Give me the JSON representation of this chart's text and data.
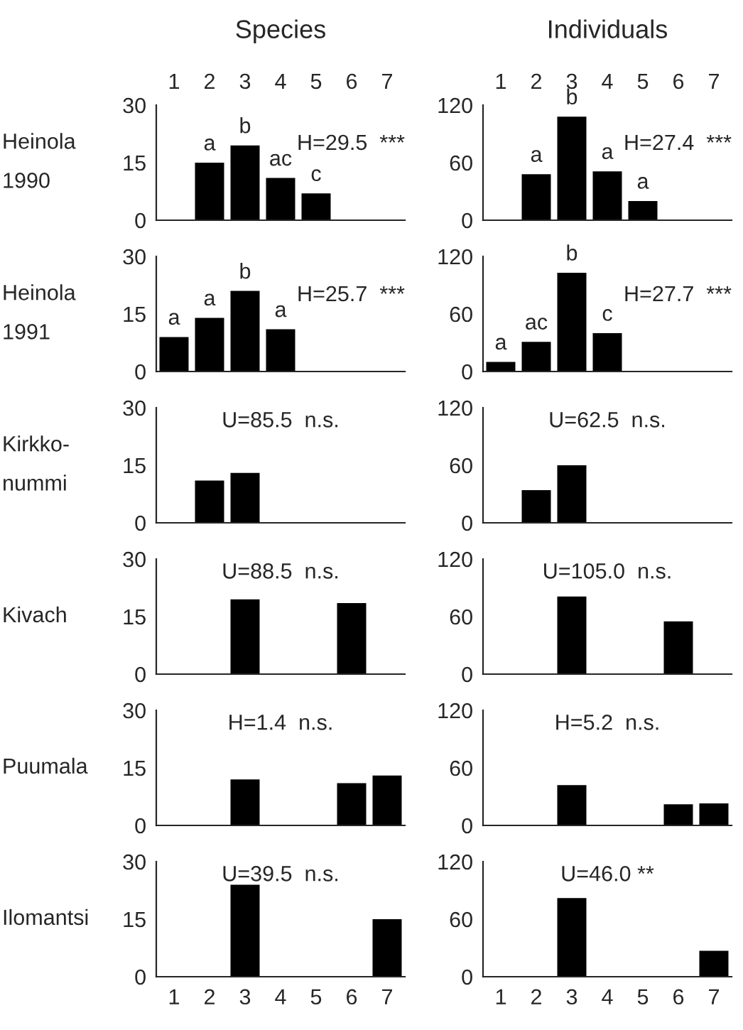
{
  "chart_data": [
    {
      "type": "bar",
      "title": "Species",
      "ylabel": "Heinola\n1990",
      "categories": [
        "1",
        "2",
        "3",
        "4",
        "5",
        "6",
        "7"
      ],
      "values": [
        0,
        15,
        19.5,
        11,
        7,
        0,
        0
      ],
      "color": "#000000",
      "ylim": [
        0,
        30
      ],
      "yticks": [
        0,
        15,
        30
      ],
      "grid": false,
      "annotations": [
        {
          "text": "a",
          "x": "2",
          "y": 15
        },
        {
          "text": "b",
          "x": "3",
          "y": 19.5
        },
        {
          "text": "ac",
          "x": "4",
          "y": 11
        },
        {
          "text": "c",
          "x": "5",
          "y": 7
        },
        "H=29.5  ***"
      ]
    },
    {
      "type": "bar",
      "title": "Individuals",
      "categories": [
        "1",
        "2",
        "3",
        "4",
        "5",
        "6",
        "7"
      ],
      "values": [
        0,
        48,
        108,
        51,
        20,
        0,
        0
      ],
      "color": "#000000",
      "ylim": [
        0,
        120
      ],
      "yticks": [
        0,
        60,
        120
      ],
      "grid": false,
      "annotations": [
        {
          "text": "a",
          "x": "2",
          "y": 48
        },
        {
          "text": "b",
          "x": "3",
          "y": 108
        },
        {
          "text": "a",
          "x": "4",
          "y": 51
        },
        {
          "text": "a",
          "x": "5",
          "y": 20
        },
        "H=27.4  ***"
      ]
    },
    {
      "type": "bar",
      "ylabel": "Heinola\n1991",
      "categories": [
        "1",
        "2",
        "3",
        "4",
        "5",
        "6",
        "7"
      ],
      "values": [
        9,
        14,
        21,
        11,
        0,
        0,
        0
      ],
      "color": "#000000",
      "ylim": [
        0,
        30
      ],
      "yticks": [
        0,
        15,
        30
      ],
      "grid": false,
      "tick_labels": "y",
      "annotations": [
        {
          "text": "a",
          "x": "1",
          "y": 9
        },
        {
          "text": "a",
          "x": "2",
          "y": 14
        },
        {
          "text": "b",
          "x": "3",
          "y": 21
        },
        {
          "text": "a",
          "x": "4",
          "y": 11
        },
        "H=25.7  ***"
      ]
    },
    {
      "type": "bar",
      "categories": [
        "1",
        "2",
        "3",
        "4",
        "5",
        "6",
        "7"
      ],
      "values": [
        10,
        31,
        103,
        40,
        0,
        0,
        0
      ],
      "color": "#000000",
      "ylim": [
        0,
        120
      ],
      "yticks": [
        0,
        60,
        120
      ],
      "grid": false,
      "tick_labels": "y",
      "annotations": [
        {
          "text": "a",
          "x": "1",
          "y": 10
        },
        {
          "text": "ac",
          "x": "2",
          "y": 31
        },
        {
          "text": "b",
          "x": "3",
          "y": 103
        },
        {
          "text": "c",
          "x": "4",
          "y": 40
        },
        "H=27.7  ***"
      ]
    },
    {
      "type": "bar",
      "ylabel": "Kirkko-\nnummi",
      "categories": [
        "1",
        "2",
        "3",
        "4",
        "5",
        "6",
        "7"
      ],
      "values": [
        0,
        11,
        13,
        0,
        0,
        0,
        0
      ],
      "color": "#000000",
      "ylim": [
        0,
        30
      ],
      "yticks": [
        0,
        15,
        30
      ],
      "grid": false,
      "tick_labels": "y",
      "annotations": [
        "U=85.5  n.s."
      ]
    },
    {
      "type": "bar",
      "categories": [
        "1",
        "2",
        "3",
        "4",
        "5",
        "6",
        "7"
      ],
      "values": [
        0,
        34,
        60,
        0,
        0,
        0,
        0
      ],
      "color": "#000000",
      "ylim": [
        0,
        120
      ],
      "yticks": [
        0,
        60,
        120
      ],
      "grid": false,
      "tick_labels": "y",
      "annotations": [
        "U=62.5  n.s."
      ]
    },
    {
      "type": "bar",
      "ylabel": "Kivach",
      "categories": [
        "1",
        "2",
        "3",
        "4",
        "5",
        "6",
        "7"
      ],
      "values": [
        0,
        0,
        19.5,
        0,
        0,
        18.5,
        0
      ],
      "color": "#000000",
      "ylim": [
        0,
        30
      ],
      "yticks": [
        0,
        15,
        30
      ],
      "grid": false,
      "tick_labels": "y",
      "annotations": [
        "U=88.5  n.s."
      ]
    },
    {
      "type": "bar",
      "categories": [
        "1",
        "2",
        "3",
        "4",
        "5",
        "6",
        "7"
      ],
      "values": [
        0,
        0,
        81,
        0,
        0,
        55,
        0
      ],
      "color": "#000000",
      "ylim": [
        0,
        120
      ],
      "yticks": [
        0,
        60,
        120
      ],
      "grid": false,
      "tick_labels": "y",
      "annotations": [
        "U=105.0  n.s."
      ]
    },
    {
      "type": "bar",
      "ylabel": "Puumala",
      "categories": [
        "1",
        "2",
        "3",
        "4",
        "5",
        "6",
        "7"
      ],
      "values": [
        0,
        0,
        12,
        0,
        0,
        11,
        13
      ],
      "color": "#000000",
      "ylim": [
        0,
        30
      ],
      "yticks": [
        0,
        15,
        30
      ],
      "grid": false,
      "tick_labels": "y",
      "annotations": [
        "H=1.4  n.s."
      ]
    },
    {
      "type": "bar",
      "categories": [
        "1",
        "2",
        "3",
        "4",
        "5",
        "6",
        "7"
      ],
      "values": [
        0,
        0,
        42,
        0,
        0,
        22,
        23
      ],
      "color": "#000000",
      "ylim": [
        0,
        120
      ],
      "yticks": [
        0,
        60,
        120
      ],
      "grid": false,
      "tick_labels": "y",
      "annotations": [
        "H=5.2  n.s."
      ]
    },
    {
      "type": "bar",
      "ylabel": "Ilomantsi",
      "categories": [
        "1",
        "2",
        "3",
        "4",
        "5",
        "6",
        "7"
      ],
      "values": [
        0,
        0,
        24,
        0,
        0,
        0,
        15
      ],
      "color": "#000000",
      "ylim": [
        0,
        30
      ],
      "yticks": [
        0,
        15,
        30
      ],
      "grid": false,
      "annotations": [
        "U=39.5  n.s."
      ]
    },
    {
      "type": "bar",
      "categories": [
        "1",
        "2",
        "3",
        "4",
        "5",
        "6",
        "7"
      ],
      "values": [
        0,
        0,
        82,
        0,
        0,
        0,
        27
      ],
      "color": "#000000",
      "ylim": [
        0,
        120
      ],
      "yticks": [
        0,
        60,
        120
      ],
      "grid": false,
      "annotations": [
        "U=46.0 **"
      ]
    }
  ]
}
